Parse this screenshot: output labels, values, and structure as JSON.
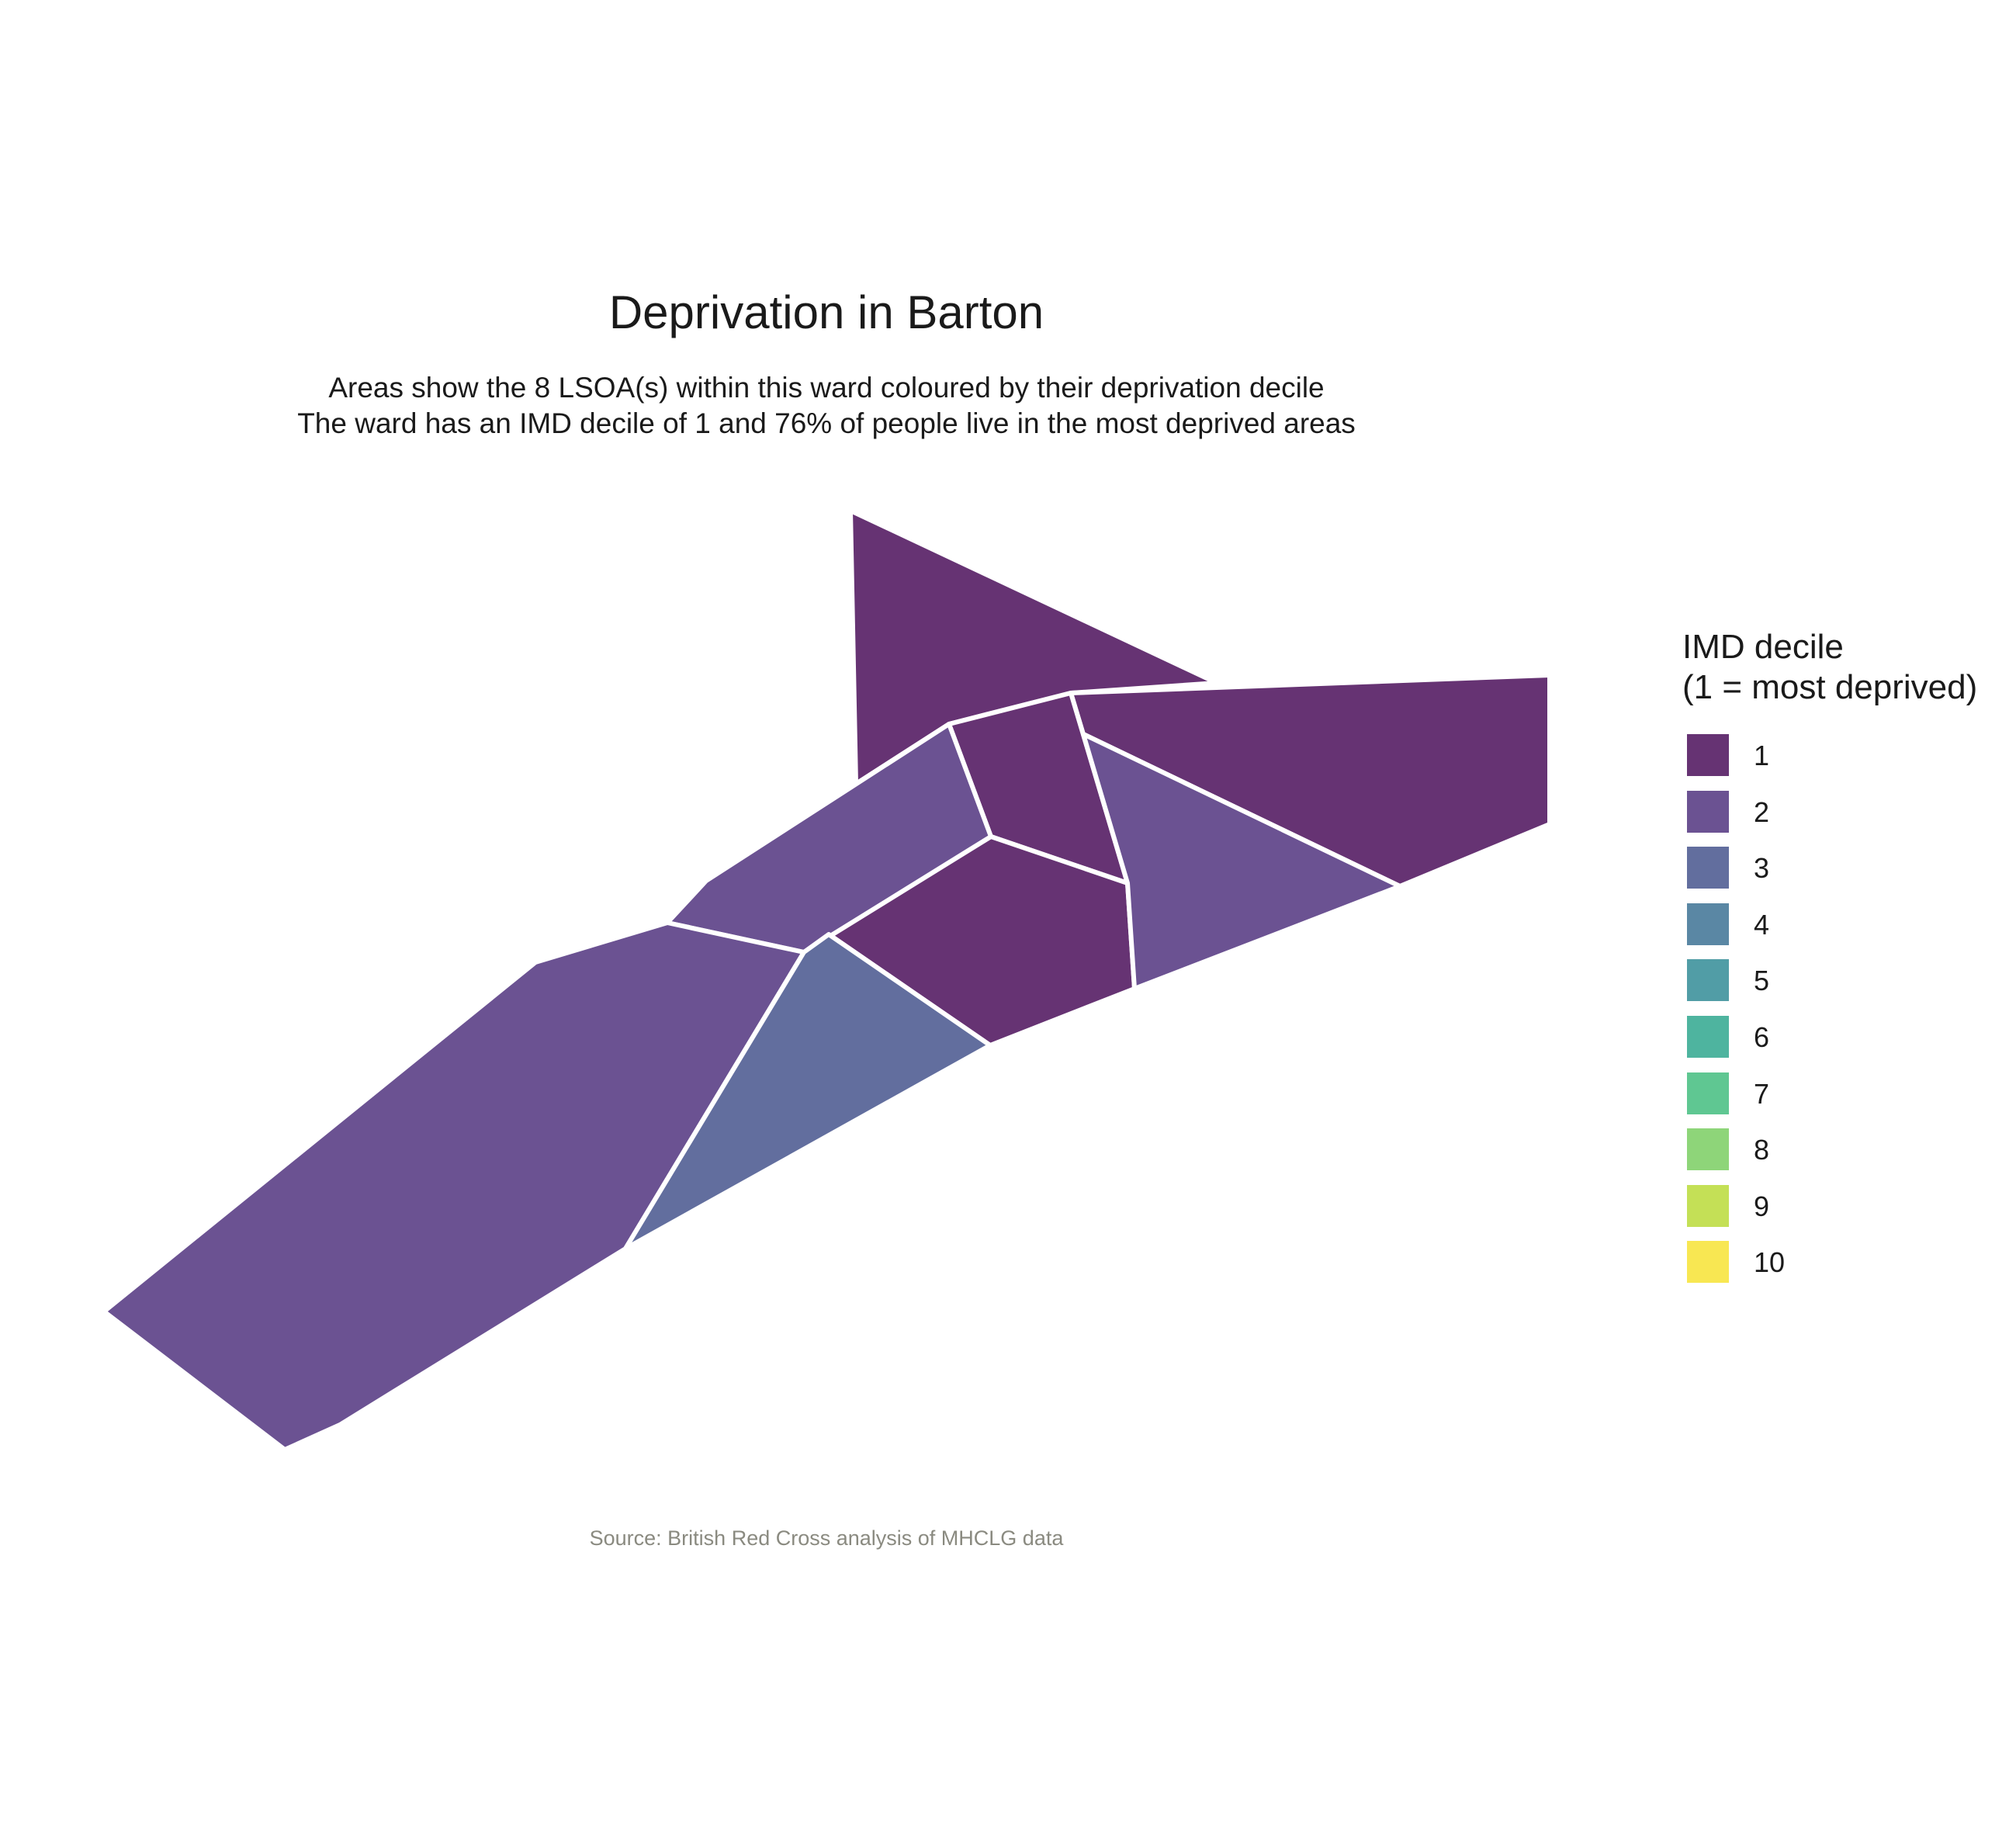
{
  "title": "Deprivation in Barton",
  "subtitle_line1": "Areas show the 8 LSOA(s) within this ward coloured by their deprivation decile",
  "subtitle_line2": "The ward has an IMD decile of 1 and 76% of people live in the most deprived areas",
  "caption": "Source: British Red Cross analysis of MHCLG data",
  "legend": {
    "title_line1": "IMD decile",
    "title_line2": "(1 = most deprived)",
    "items": [
      {
        "label": "1",
        "color": "#663373"
      },
      {
        "label": "2",
        "color": "#6B5292"
      },
      {
        "label": "3",
        "color": "#626E9E"
      },
      {
        "label": "4",
        "color": "#5A87A4"
      },
      {
        "label": "5",
        "color": "#519DA6"
      },
      {
        "label": "6",
        "color": "#4EB49F"
      },
      {
        "label": "7",
        "color": "#5FC792"
      },
      {
        "label": "8",
        "color": "#8ED579"
      },
      {
        "label": "9",
        "color": "#C4E056"
      },
      {
        "label": "10",
        "color": "#F8E752"
      }
    ]
  },
  "map": {
    "boundary_color": "#ffffff",
    "areas": [
      {
        "name": "lsoa-north-triangle",
        "decile": 1
      },
      {
        "name": "lsoa-east",
        "decile": 1
      },
      {
        "name": "lsoa-center-small",
        "decile": 1
      },
      {
        "name": "lsoa-center-south",
        "decile": 1
      },
      {
        "name": "lsoa-east-lower",
        "decile": 2
      },
      {
        "name": "lsoa-north-west",
        "decile": 2
      },
      {
        "name": "lsoa-south-west",
        "decile": 2
      },
      {
        "name": "lsoa-south-middle",
        "decile": 3
      }
    ]
  }
}
